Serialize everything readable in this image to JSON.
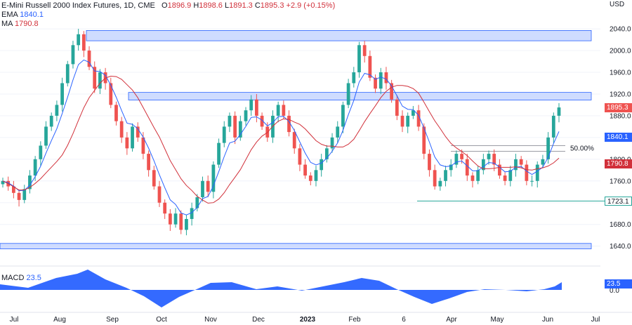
{
  "header": {
    "title": "E-Mini Russell 2000 Index Futures, 1D, CME",
    "o_label": "O",
    "o": "1896.9",
    "h_label": "H",
    "h": "1898.6",
    "l_label": "L",
    "l": "1891.3",
    "c_label": "C",
    "c": "1895.3",
    "change": "+2.9 (+0.15%)",
    "ema_label": "EMA",
    "ema_value": "1840.1",
    "ma_label": "MA",
    "ma_value": "1790.8"
  },
  "macd": {
    "label": "MACD",
    "value": "23.5",
    "badge": "23.5",
    "zero_label": "0.0"
  },
  "colors": {
    "up": "#26a69a",
    "down": "#ef5350",
    "zone": "#c7d6ff",
    "zone_border": "#2962ff",
    "ema": "#2962ff",
    "ma": "#d1303a",
    "macd": "#2962ff"
  },
  "chart_data": {
    "type": "candlestick",
    "y_unit": "USD",
    "yticks": [
      1640,
      1680,
      1720,
      1760,
      1800,
      1840,
      1880,
      1920,
      1960,
      2000,
      2040
    ],
    "ytick_labels": [
      "1640.0",
      "1680.0",
      "1720.0",
      "1760.0",
      "1800.0",
      "1840.0",
      "1880.0",
      "1920.0",
      "1960.0",
      "2000.0",
      "2040.0"
    ],
    "ylim": [
      1615,
      2075
    ],
    "x_labels": [
      "Jul",
      "Aug",
      "Sep",
      "Oct",
      "Nov",
      "Dec",
      "2023",
      "Feb",
      "6",
      "Apr",
      "May",
      "Jun",
      "Jul"
    ],
    "price_badges": [
      {
        "label": "1895.3",
        "value": 1895.3,
        "color": "#ef5350"
      },
      {
        "label": "1840.1",
        "value": 1840.1,
        "color": "#2962ff"
      },
      {
        "label": "1790.8",
        "value": 1790.8,
        "color": "#d1303a"
      },
      {
        "label": "1723.1",
        "value": 1723.1,
        "color": "#26a69a"
      }
    ],
    "zones": [
      {
        "from": 2018,
        "to": 2037
      },
      {
        "from": 1909,
        "to": 1923
      },
      {
        "from": 1635,
        "to": 1645
      }
    ],
    "fib_label": "50.00%",
    "fib_level": 1820,
    "support_level": 1723.1,
    "close_series": [
      1760,
      1750,
      1738,
      1725,
      1745,
      1770,
      1800,
      1825,
      1860,
      1880,
      1900,
      1940,
      1975,
      2010,
      2030,
      2000,
      1970,
      1930,
      1960,
      1940,
      1900,
      1870,
      1840,
      1820,
      1860,
      1840,
      1810,
      1780,
      1750,
      1720,
      1700,
      1680,
      1700,
      1670,
      1690,
      1710,
      1730,
      1760,
      1740,
      1790,
      1830,
      1860,
      1880,
      1840,
      1870,
      1890,
      1910,
      1880,
      1860,
      1840,
      1880,
      1900,
      1880,
      1850,
      1820,
      1790,
      1770,
      1760,
      1780,
      1800,
      1820,
      1840,
      1860,
      1900,
      1940,
      1960,
      2010,
      1990,
      1950,
      1930,
      1960,
      1940,
      1910,
      1880,
      1860,
      1880,
      1890,
      1860,
      1810,
      1780,
      1750,
      1760,
      1780,
      1790,
      1810,
      1800,
      1770,
      1760,
      1780,
      1800,
      1810,
      1790,
      1770,
      1760,
      1780,
      1800,
      1790,
      1760,
      1760,
      1790,
      1800,
      1840,
      1880,
      1895.3
    ],
    "macd_value": 23.5
  }
}
